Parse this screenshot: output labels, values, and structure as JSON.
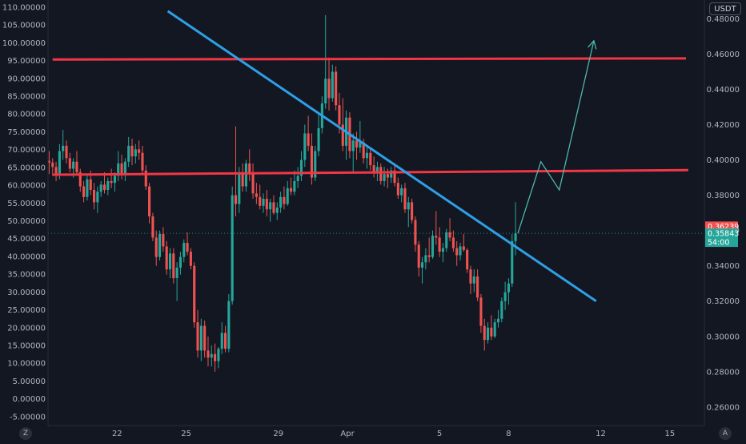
{
  "chart_data": {
    "type": "candlestick",
    "left_axis": {
      "ticks": [
        "110.00000",
        "105.00000",
        "100.00000",
        "95.00000",
        "90.00000",
        "85.00000",
        "80.00000",
        "75.00000",
        "70.00000",
        "65.00000",
        "60.00000",
        "55.00000",
        "50.00000",
        "45.00000",
        "40.00000",
        "35.00000",
        "30.00000",
        "25.00000",
        "20.00000",
        "15.00000",
        "10.00000",
        "5.00000",
        "0.00000",
        "-5.00000"
      ],
      "ylim": [
        -7.5,
        112
      ]
    },
    "right_axis": {
      "unit": "USDT",
      "ticks": [
        "0.48000",
        "0.46000",
        "0.44000",
        "0.42000",
        "0.40000",
        "0.38000",
        "0.36000",
        "0.34000",
        "0.32000",
        "0.30000",
        "0.28000",
        "0.26000"
      ],
      "ylim": [
        0.2495,
        0.4906
      ]
    },
    "x_axis": {
      "ticks": [
        "22",
        "25",
        "29",
        "Apr",
        "5",
        "8",
        "12",
        "15"
      ],
      "tick_days": [
        22,
        25,
        29,
        32,
        36,
        39,
        43,
        46
      ],
      "xlim": [
        19.0,
        47.5
      ]
    },
    "price_tags": [
      {
        "label": "0.36239",
        "value": 0.36239,
        "color": "#ef5350"
      },
      {
        "label": "0.35843",
        "value": 0.35843,
        "color": "#26a69a"
      },
      {
        "label": "54:00",
        "value": 0.35843,
        "color": "#26a69a"
      }
    ],
    "last_price_line": 0.3584,
    "colors": {
      "up": "#26a69a",
      "down": "#ef5350",
      "support": "#f23645",
      "trend": "#2e9fe6",
      "projection": "#4db6ac"
    },
    "support_lines": [
      {
        "x": [
          19.2,
          46.7
        ],
        "y": [
          0.4569,
          0.4575
        ]
      },
      {
        "x": [
          19.2,
          46.8
        ],
        "y": [
          0.3916,
          0.3942
        ]
      }
    ],
    "trend_line": {
      "x": [
        24.2,
        42.8
      ],
      "y": [
        0.4843,
        0.32
      ]
    },
    "projection_path": {
      "x": [
        39.4,
        40.4,
        41.2,
        42.7
      ],
      "y": [
        0.3584,
        0.399,
        0.383,
        0.4675
      ]
    },
    "candles": [
      [
        19.05,
        0.3995,
        0.405,
        0.392,
        0.3985
      ],
      [
        19.2,
        0.3985,
        0.401,
        0.391,
        0.396
      ],
      [
        19.35,
        0.396,
        0.399,
        0.388,
        0.392
      ],
      [
        19.5,
        0.392,
        0.409,
        0.389,
        0.405
      ],
      [
        19.65,
        0.405,
        0.417,
        0.4,
        0.408
      ],
      [
        19.8,
        0.408,
        0.411,
        0.398,
        0.401
      ],
      [
        19.95,
        0.401,
        0.404,
        0.393,
        0.395
      ],
      [
        20.1,
        0.395,
        0.401,
        0.39,
        0.399
      ],
      [
        20.25,
        0.399,
        0.405,
        0.392,
        0.393
      ],
      [
        20.4,
        0.393,
        0.395,
        0.382,
        0.385
      ],
      [
        20.55,
        0.385,
        0.388,
        0.376,
        0.379
      ],
      [
        20.7,
        0.379,
        0.392,
        0.377,
        0.389
      ],
      [
        20.85,
        0.389,
        0.394,
        0.38,
        0.383
      ],
      [
        21.0,
        0.383,
        0.387,
        0.372,
        0.376
      ],
      [
        21.15,
        0.376,
        0.385,
        0.37,
        0.382
      ],
      [
        21.3,
        0.382,
        0.388,
        0.379,
        0.386
      ],
      [
        21.45,
        0.386,
        0.393,
        0.381,
        0.383
      ],
      [
        21.6,
        0.383,
        0.39,
        0.38,
        0.388
      ],
      [
        21.75,
        0.388,
        0.395,
        0.384,
        0.387
      ],
      [
        21.9,
        0.387,
        0.393,
        0.382,
        0.391
      ],
      [
        22.05,
        0.391,
        0.405,
        0.388,
        0.398
      ],
      [
        22.2,
        0.398,
        0.403,
        0.389,
        0.392
      ],
      [
        22.35,
        0.392,
        0.401,
        0.388,
        0.399
      ],
      [
        22.5,
        0.399,
        0.413,
        0.396,
        0.408
      ],
      [
        22.65,
        0.408,
        0.412,
        0.397,
        0.402
      ],
      [
        22.8,
        0.402,
        0.409,
        0.398,
        0.406
      ],
      [
        22.95,
        0.406,
        0.411,
        0.4,
        0.404
      ],
      [
        23.1,
        0.404,
        0.408,
        0.392,
        0.394
      ],
      [
        23.25,
        0.394,
        0.397,
        0.383,
        0.385
      ],
      [
        23.4,
        0.385,
        0.387,
        0.364,
        0.368
      ],
      [
        23.55,
        0.368,
        0.37,
        0.354,
        0.356
      ],
      [
        23.7,
        0.356,
        0.36,
        0.34,
        0.345
      ],
      [
        23.85,
        0.345,
        0.36,
        0.343,
        0.358
      ],
      [
        24.0,
        0.358,
        0.362,
        0.348,
        0.351
      ],
      [
        24.15,
        0.351,
        0.354,
        0.335,
        0.338
      ],
      [
        24.3,
        0.338,
        0.35,
        0.333,
        0.347
      ],
      [
        24.45,
        0.347,
        0.35,
        0.33,
        0.333
      ],
      [
        24.6,
        0.333,
        0.342,
        0.32,
        0.339
      ],
      [
        24.75,
        0.339,
        0.348,
        0.335,
        0.345
      ],
      [
        24.9,
        0.345,
        0.355,
        0.342,
        0.353
      ],
      [
        25.05,
        0.353,
        0.359,
        0.346,
        0.348
      ],
      [
        25.2,
        0.348,
        0.35,
        0.338,
        0.34
      ],
      [
        25.35,
        0.34,
        0.342,
        0.305,
        0.308
      ],
      [
        25.5,
        0.308,
        0.315,
        0.288,
        0.292
      ],
      [
        25.65,
        0.292,
        0.31,
        0.286,
        0.306
      ],
      [
        25.8,
        0.306,
        0.309,
        0.288,
        0.292
      ],
      [
        25.95,
        0.292,
        0.3,
        0.283,
        0.288
      ],
      [
        26.1,
        0.288,
        0.295,
        0.283,
        0.29
      ],
      [
        26.25,
        0.29,
        0.296,
        0.28,
        0.286
      ],
      [
        26.4,
        0.286,
        0.294,
        0.282,
        0.293
      ],
      [
        26.55,
        0.293,
        0.308,
        0.29,
        0.302
      ],
      [
        26.7,
        0.302,
        0.306,
        0.291,
        0.293
      ],
      [
        26.85,
        0.293,
        0.324,
        0.291,
        0.32
      ],
      [
        27.0,
        0.32,
        0.385,
        0.318,
        0.38
      ],
      [
        27.15,
        0.38,
        0.419,
        0.368,
        0.375
      ],
      [
        27.3,
        0.375,
        0.396,
        0.37,
        0.392
      ],
      [
        27.45,
        0.392,
        0.398,
        0.382,
        0.385
      ],
      [
        27.6,
        0.385,
        0.4,
        0.382,
        0.398
      ],
      [
        27.75,
        0.398,
        0.406,
        0.388,
        0.392
      ],
      [
        27.9,
        0.392,
        0.398,
        0.378,
        0.381
      ],
      [
        28.05,
        0.381,
        0.387,
        0.375,
        0.379
      ],
      [
        28.2,
        0.379,
        0.386,
        0.372,
        0.374
      ],
      [
        28.35,
        0.374,
        0.381,
        0.37,
        0.378
      ],
      [
        28.5,
        0.378,
        0.383,
        0.368,
        0.372
      ],
      [
        28.65,
        0.372,
        0.378,
        0.365,
        0.376
      ],
      [
        28.8,
        0.376,
        0.38,
        0.369,
        0.37
      ],
      [
        28.95,
        0.37,
        0.376,
        0.366,
        0.373
      ],
      [
        29.1,
        0.373,
        0.382,
        0.37,
        0.379
      ],
      [
        29.25,
        0.379,
        0.385,
        0.372,
        0.375
      ],
      [
        29.4,
        0.375,
        0.388,
        0.374,
        0.384
      ],
      [
        29.55,
        0.384,
        0.39,
        0.38,
        0.382
      ],
      [
        29.7,
        0.382,
        0.394,
        0.38,
        0.388
      ],
      [
        29.85,
        0.388,
        0.396,
        0.384,
        0.391
      ],
      [
        30.0,
        0.391,
        0.405,
        0.388,
        0.4
      ],
      [
        30.15,
        0.4,
        0.42,
        0.396,
        0.415
      ],
      [
        30.3,
        0.415,
        0.425,
        0.405,
        0.408
      ],
      [
        30.45,
        0.408,
        0.415,
        0.386,
        0.39
      ],
      [
        30.6,
        0.39,
        0.408,
        0.388,
        0.405
      ],
      [
        30.75,
        0.405,
        0.427,
        0.402,
        0.418
      ],
      [
        30.9,
        0.418,
        0.436,
        0.415,
        0.432
      ],
      [
        31.05,
        0.432,
        0.482,
        0.429,
        0.446
      ],
      [
        31.2,
        0.446,
        0.458,
        0.428,
        0.435
      ],
      [
        31.35,
        0.435,
        0.454,
        0.433,
        0.45
      ],
      [
        31.5,
        0.45,
        0.453,
        0.428,
        0.431
      ],
      [
        31.65,
        0.431,
        0.438,
        0.415,
        0.42
      ],
      [
        31.8,
        0.42,
        0.435,
        0.405,
        0.408
      ],
      [
        31.95,
        0.408,
        0.428,
        0.4,
        0.424
      ],
      [
        32.1,
        0.424,
        0.427,
        0.401,
        0.405
      ],
      [
        32.25,
        0.405,
        0.415,
        0.393,
        0.411
      ],
      [
        32.4,
        0.411,
        0.416,
        0.4,
        0.407
      ],
      [
        32.55,
        0.407,
        0.422,
        0.404,
        0.41
      ],
      [
        32.7,
        0.41,
        0.412,
        0.398,
        0.401
      ],
      [
        32.85,
        0.401,
        0.408,
        0.395,
        0.404
      ],
      [
        33.0,
        0.404,
        0.407,
        0.394,
        0.397
      ],
      [
        33.15,
        0.397,
        0.402,
        0.39,
        0.393
      ],
      [
        33.3,
        0.393,
        0.399,
        0.388,
        0.396
      ],
      [
        33.45,
        0.396,
        0.398,
        0.386,
        0.388
      ],
      [
        33.6,
        0.388,
        0.396,
        0.385,
        0.392
      ],
      [
        33.75,
        0.392,
        0.395,
        0.384,
        0.39
      ],
      [
        33.9,
        0.39,
        0.396,
        0.387,
        0.394
      ],
      [
        34.05,
        0.394,
        0.397,
        0.385,
        0.387
      ],
      [
        34.2,
        0.387,
        0.39,
        0.378,
        0.38
      ],
      [
        34.35,
        0.38,
        0.386,
        0.376,
        0.384
      ],
      [
        34.5,
        0.384,
        0.387,
        0.37,
        0.372
      ],
      [
        34.65,
        0.372,
        0.379,
        0.362,
        0.376
      ],
      [
        34.8,
        0.376,
        0.378,
        0.364,
        0.366
      ],
      [
        34.95,
        0.366,
        0.368,
        0.348,
        0.352
      ],
      [
        35.1,
        0.352,
        0.354,
        0.334,
        0.339
      ],
      [
        35.25,
        0.339,
        0.345,
        0.33,
        0.342
      ],
      [
        35.4,
        0.342,
        0.35,
        0.338,
        0.346
      ],
      [
        35.55,
        0.346,
        0.356,
        0.342,
        0.345
      ],
      [
        35.7,
        0.345,
        0.36,
        0.344,
        0.357
      ],
      [
        35.85,
        0.357,
        0.371,
        0.352,
        0.356
      ],
      [
        36.0,
        0.356,
        0.362,
        0.345,
        0.348
      ],
      [
        36.15,
        0.348,
        0.353,
        0.342,
        0.35
      ],
      [
        36.3,
        0.35,
        0.361,
        0.348,
        0.359
      ],
      [
        36.45,
        0.359,
        0.367,
        0.354,
        0.356
      ],
      [
        36.6,
        0.356,
        0.36,
        0.348,
        0.35
      ],
      [
        36.75,
        0.35,
        0.354,
        0.34,
        0.346
      ],
      [
        36.9,
        0.346,
        0.353,
        0.343,
        0.351
      ],
      [
        37.05,
        0.351,
        0.358,
        0.348,
        0.349
      ],
      [
        37.2,
        0.349,
        0.35,
        0.336,
        0.338
      ],
      [
        37.35,
        0.338,
        0.34,
        0.324,
        0.33
      ],
      [
        37.5,
        0.33,
        0.338,
        0.325,
        0.334
      ],
      [
        37.65,
        0.334,
        0.338,
        0.32,
        0.322
      ],
      [
        37.8,
        0.322,
        0.324,
        0.302,
        0.306
      ],
      [
        37.95,
        0.306,
        0.31,
        0.292,
        0.298
      ],
      [
        38.1,
        0.298,
        0.308,
        0.296,
        0.305
      ],
      [
        38.25,
        0.305,
        0.312,
        0.298,
        0.3
      ],
      [
        38.4,
        0.3,
        0.31,
        0.299,
        0.308
      ],
      [
        38.55,
        0.308,
        0.315,
        0.305,
        0.31
      ],
      [
        38.7,
        0.31,
        0.322,
        0.308,
        0.32
      ],
      [
        38.85,
        0.32,
        0.331,
        0.315,
        0.325
      ],
      [
        39.0,
        0.325,
        0.333,
        0.318,
        0.33
      ],
      [
        39.15,
        0.33,
        0.358,
        0.328,
        0.354
      ],
      [
        39.3,
        0.354,
        0.376,
        0.346,
        0.3584
      ]
    ]
  }
}
